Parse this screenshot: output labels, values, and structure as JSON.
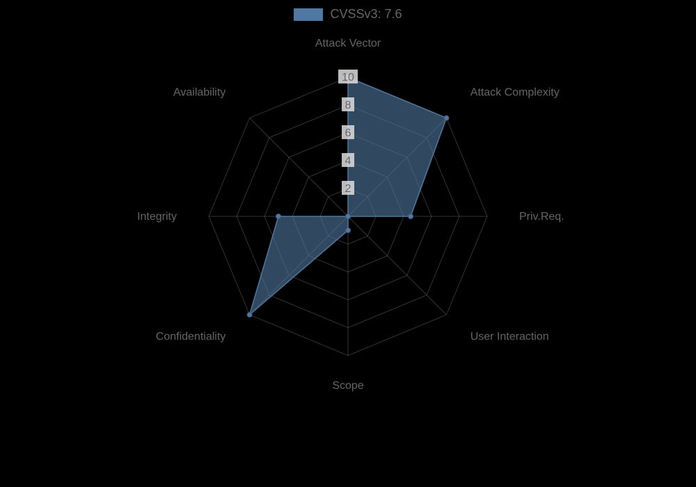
{
  "legend": {
    "label": "CVSSv3: 7.6",
    "swatch_color": "#5078a0"
  },
  "chart": {
    "type": "radar",
    "background_color": "#000000",
    "grid_color": "#666666",
    "grid_opacity": 0.5,
    "axis_label_color": "#666666",
    "axis_label_fontsize": 16,
    "tick_label_color": "#666666",
    "tick_label_fontsize": 16,
    "tick_label_bg": "#dddddd",
    "max_value": 10,
    "ticks": [
      2,
      4,
      6,
      8,
      10
    ],
    "series_fill_color": "#5078a0",
    "series_fill_opacity": 0.6,
    "series_stroke_color": "#5078a0",
    "series_stroke_width": 1.5,
    "point_color": "#5078a0",
    "point_stroke": "#3c5c7d",
    "point_radius": 3.5,
    "axes": [
      {
        "label": "Attack Vector",
        "value": 10
      },
      {
        "label": "Attack Complexity",
        "value": 10
      },
      {
        "label": "Priv.Req.",
        "value": 4.5
      },
      {
        "label": "User Interaction",
        "value": 0
      },
      {
        "label": "Scope",
        "value": 1
      },
      {
        "label": "Confidentiality",
        "value": 10
      },
      {
        "label": "Integrity",
        "value": 5
      },
      {
        "label": "Availability",
        "value": 0
      }
    ]
  }
}
